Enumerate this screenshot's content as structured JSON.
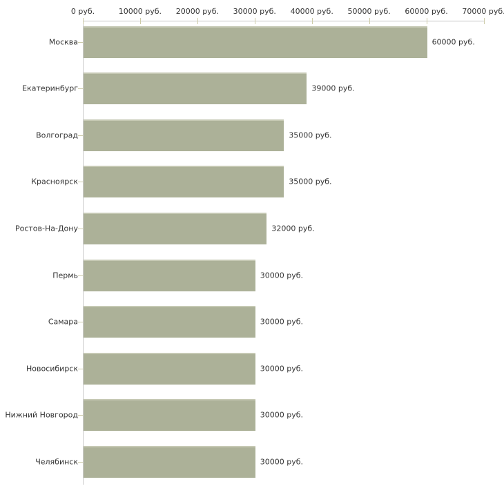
{
  "chart_data": {
    "type": "bar",
    "orientation": "horizontal",
    "title": "",
    "xlabel": "",
    "ylabel": "",
    "unit": "руб.",
    "categories": [
      "Москва",
      "Екатеринбург",
      "Волгоград",
      "Красноярск",
      "Ростов-На-Дону",
      "Пермь",
      "Самара",
      "Новосибирск",
      "Нижний Новгород",
      "Челябинск"
    ],
    "values": [
      60000,
      39000,
      35000,
      35000,
      32000,
      30000,
      30000,
      30000,
      30000,
      30000
    ],
    "value_labels": [
      "60000 руб.",
      "39000 руб.",
      "35000 руб.",
      "35000 руб.",
      "32000 руб.",
      "30000 руб.",
      "30000 руб.",
      "30000 руб.",
      "30000 руб.",
      "30000 руб."
    ],
    "x_ticks": [
      0,
      10000,
      20000,
      30000,
      40000,
      50000,
      60000,
      70000
    ],
    "x_tick_labels": [
      "0 руб.",
      "10000 руб.",
      "20000 руб.",
      "30000 руб.",
      "40000 руб.",
      "50000 руб.",
      "60000 руб.",
      "70000 руб."
    ],
    "xlim": [
      0,
      70000
    ],
    "axis_position": "top",
    "grid": false,
    "legend": false,
    "colors": {
      "bar": "#acb198",
      "bar_top_highlight": "#c6c9b4",
      "axis_line": "#c3c3c3",
      "tick": "#cdcba8",
      "text": "#333333",
      "background": "#ffffff"
    }
  }
}
